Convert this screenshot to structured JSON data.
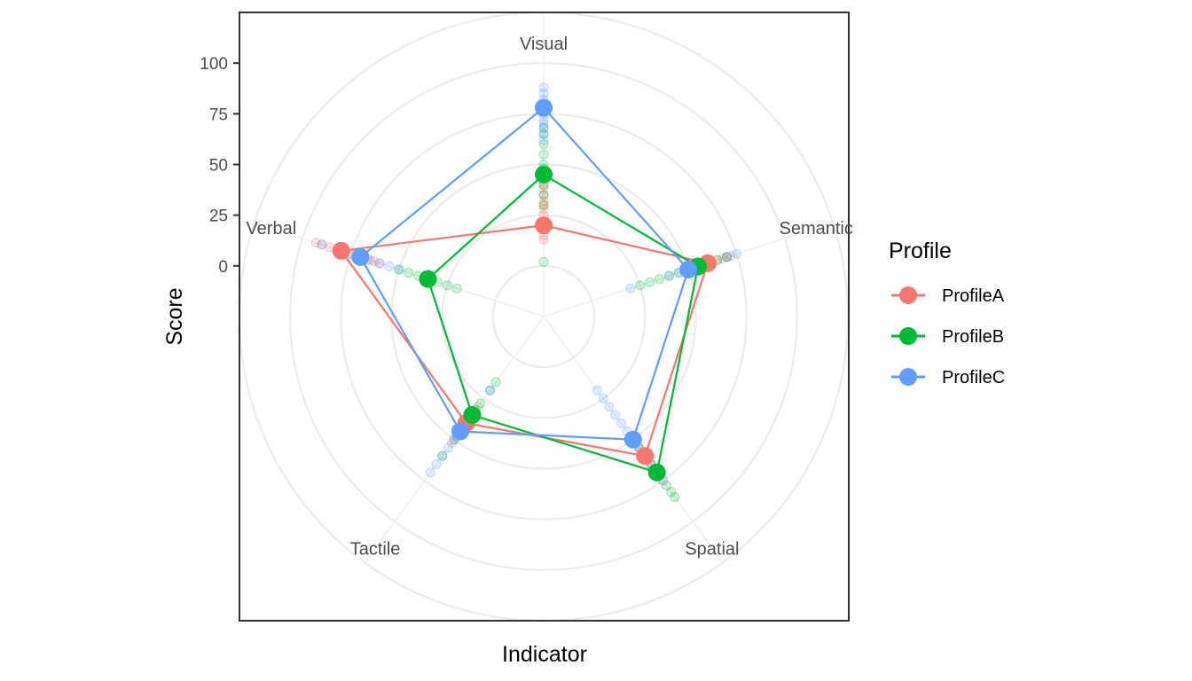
{
  "chart_data": {
    "type": "radar",
    "xlabel": "Indicator",
    "ylabel": "Score",
    "ylim": [
      -25,
      125
    ],
    "y_ticks": [
      0,
      25,
      50,
      75,
      100
    ],
    "grid": true,
    "legend_position": "right",
    "legend_title": "Profile",
    "categories": [
      "Visual",
      "Semantic",
      "Spatial",
      "Tactile",
      "Verbal"
    ],
    "series": [
      {
        "name": "ProfileA",
        "color": "#F8766D",
        "values": [
          20,
          60,
          60,
          40,
          80
        ],
        "points": [
          [
            13,
            15,
            18,
            20,
            22,
            25,
            28,
            30,
            32,
            35,
            38,
            40
          ],
          [
            50,
            52,
            55,
            58,
            60,
            62,
            65,
            68,
            70,
            72
          ],
          [
            50,
            52,
            55,
            58,
            60,
            62,
            65,
            68,
            70,
            75
          ],
          [
            30,
            34,
            38,
            40,
            42,
            45,
            48,
            52
          ],
          [
            60,
            63,
            66,
            70,
            74,
            78,
            80,
            82,
            86,
            90,
            93
          ]
        ]
      },
      {
        "name": "ProfileB",
        "color": "#00BA38",
        "values": [
          45,
          55,
          70,
          35,
          35
        ],
        "points": [
          [
            2,
            30,
            35,
            40,
            45,
            48,
            50,
            55,
            60,
            65,
            68
          ],
          [
            25,
            30,
            35,
            40,
            45,
            50,
            52,
            55,
            60,
            65,
            70
          ],
          [
            50,
            55,
            60,
            65,
            68,
            70,
            72,
            78,
            82,
            85
          ],
          [
            15,
            20,
            28,
            32,
            35,
            38,
            42,
            50,
            60
          ],
          [
            20,
            25,
            30,
            35,
            40,
            45,
            50
          ]
        ]
      },
      {
        "name": "ProfileC",
        "color": "#619CFF",
        "values": [
          78,
          50,
          50,
          45,
          70
        ],
        "points": [
          [
            62,
            65,
            68,
            70,
            72,
            75,
            78,
            80,
            82,
            85,
            88
          ],
          [
            20,
            40,
            45,
            48,
            50,
            52,
            55,
            58,
            60,
            70,
            75
          ],
          [
            20,
            25,
            30,
            35,
            40,
            45,
            50,
            55,
            60,
            65,
            75
          ],
          [
            20,
            35,
            40,
            45,
            50,
            55,
            60,
            65,
            70
          ],
          [
            50,
            55,
            60,
            65,
            70,
            75,
            80,
            90
          ]
        ]
      }
    ]
  }
}
